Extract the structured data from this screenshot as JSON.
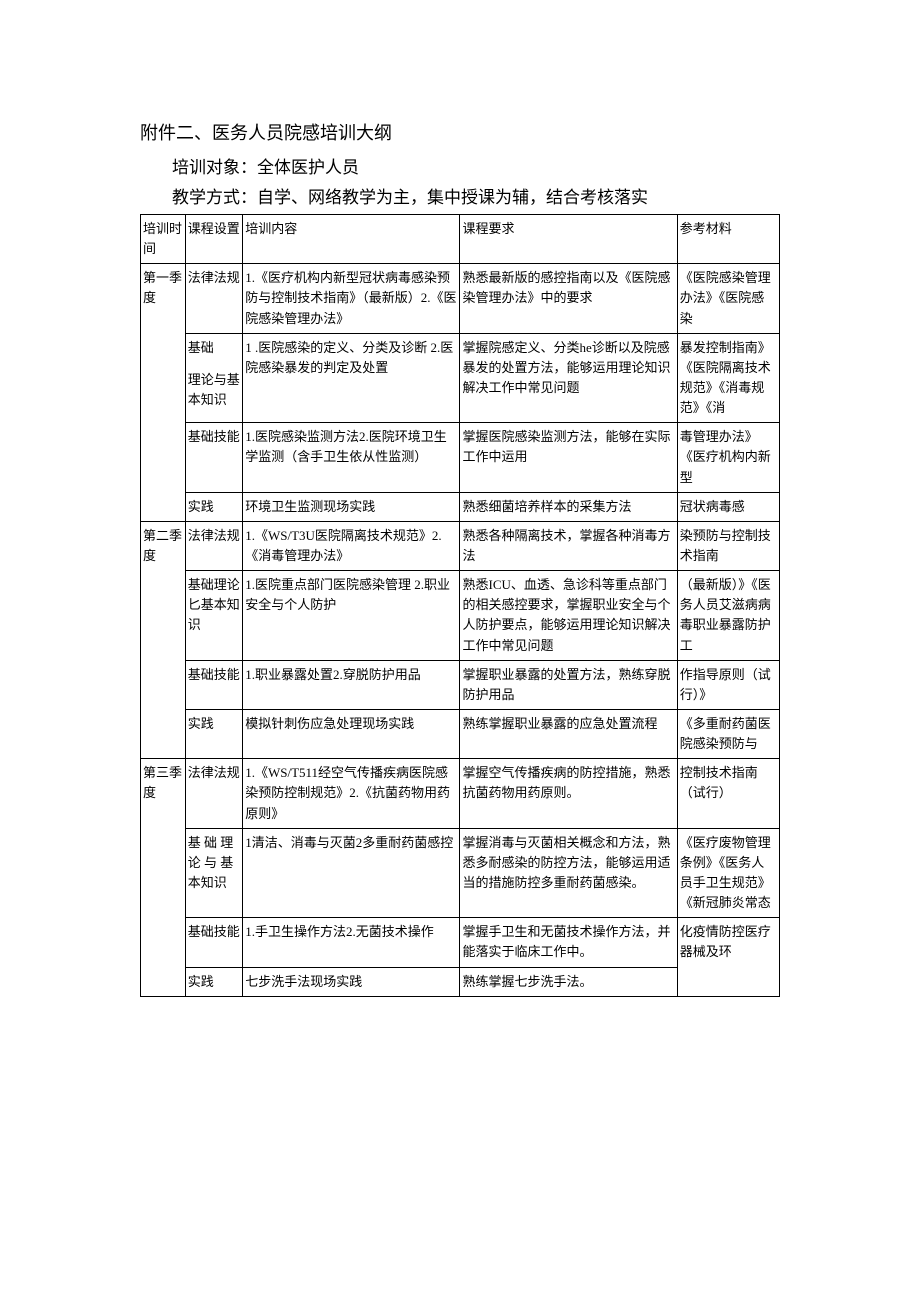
{
  "heading": "附件二、医务人员院感培训大纲",
  "line1": "培训对象：全体医护人员",
  "line2": "教学方式：自学、网络教学为主，集中授课为辅，结合考核落实",
  "headers": {
    "time": "培训时间",
    "course": "课程设置",
    "content": "培训内容",
    "req": "课程要求",
    "ref": "参考材料"
  },
  "q1": {
    "time": "第一季度",
    "r1": {
      "course": "法律法规",
      "content": "1.《医疗机构内新型冠状病毒感染预防与控制技术指南》（最新版）2.《医院感染管理办法》",
      "req": "熟悉最新版的感控指南以及《医院感染管理办法》中的要求"
    },
    "r2": {
      "course_a": "基础",
      "course_b": "理论与基本知识",
      "content": "1          .医院感染的定义、分类及诊断\n2.医院感染暴发的判定及处置",
      "req": "掌握院感定义、分类he诊断以及院感暴发的处置方法，能够运用理论知识解决工作中常见问题"
    },
    "r3": {
      "course": "基础技能",
      "content": "1.医院感染监测方法2.医院环境卫生学监测（含手卫生依从性监测）",
      "req": "掌握医院感染监测方法，能够在实际工作中运用"
    },
    "r4": {
      "course": "实践",
      "content": "环境卫生监测现场实践",
      "req": "熟悉细菌培养样本的采集方法"
    }
  },
  "q2": {
    "time": "第二季度",
    "r1": {
      "course": "法律法规",
      "content": "1.《WS/T3U医院隔离技术规范》2.《消毒管理办法》",
      "req": "熟悉各种隔离技术，掌握各种消毒方法"
    },
    "r2": {
      "course": "基础理论匕基本知识",
      "content": "1.医院重点部门医院感染管理 2.职业安全与个人防护",
      "req": "熟悉ICU、血透、急诊科等重点部门的相关感控要求，掌握职业安全与个人防护要点，能够运用理论知识解决工作中常见问题"
    },
    "r3": {
      "course": "基础技能",
      "content": "1.职业暴露处置2.穿脱防护用品",
      "req": "掌握职业暴露的处置方法，熟练穿脱防护用品"
    },
    "r4": {
      "course": "实践",
      "content": "模拟针刺伤应急处理现场实践",
      "req": "熟练掌握职业暴露的应急处置流程"
    }
  },
  "q3": {
    "time": "第三季度",
    "r1": {
      "course": "法律法规",
      "content": "1.《WS/T511经空气传播疾病医院感染预防控制规范》2.《抗菌药物用药原则》",
      "req": "掌握空气传播疾病的防控措施，熟悉抗菌药物用药原则。"
    },
    "r2": {
      "course": "基 础 理论 与 基本知识",
      "content": "1清洁、消毒与灭菌2多重耐药菌感控",
      "req": "掌握消毒与灭菌相关概念和方法，熟悉多耐感染的防控方法，能够运用适当的措施防控多重耐药菌感染。"
    },
    "r3": {
      "course": "基础技能",
      "content": "1.手卫生操作方法2.无菌技术操作",
      "req": "掌握手卫生和无菌技术操作方法，并能落实于临床工作中。"
    },
    "r4": {
      "course": "实践",
      "content": "七步洗手法现场实践",
      "req": "熟练掌握七步洗手法。"
    }
  },
  "ref": {
    "a": "《医院感染管理办法》《医院感染",
    "b": "暴发控制指南》《医院隔离技术规范》《消毒规范》《消",
    "c": "毒管理办法》《医疗机构内新型",
    "d": "冠状病毒感",
    "e": "染预防与控制技术指南",
    "f": "（最新版）》《医务人员艾滋病病毒职业暴露防护工",
    "g": "作指导原则（试行）》",
    "h": "《多重耐药菌医院感染预防与",
    "i": "控制技术指南（试行）",
    "j": "《医疗废物管理条例》《医务人员手卫生规范》《新冠肺炎常态",
    "k": "化疫情防控医疗器械及环"
  }
}
